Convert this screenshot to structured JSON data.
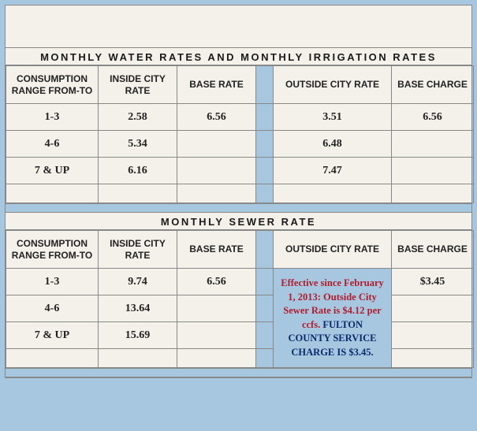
{
  "section1": {
    "title": "MONTHLY WATER RATES AND MONTHLY IRRIGATION RATES",
    "headers": {
      "consumption": "CONSUMPTION RANGE FROM-TO",
      "inside": "INSIDE CITY RATE",
      "base": "BASE RATE",
      "outside": "OUTSIDE CITY RATE",
      "charge": "BASE CHARGE"
    },
    "rows": [
      {
        "range": "1-3",
        "inside": "2.58",
        "base": "6.56",
        "outside": "3.51",
        "charge": "6.56"
      },
      {
        "range": "4-6",
        "inside": "5.34",
        "base": "",
        "outside": "6.48",
        "charge": ""
      },
      {
        "range": "7 & UP",
        "inside": "6.16",
        "base": "",
        "outside": "7.47",
        "charge": ""
      }
    ]
  },
  "section2": {
    "title": "MONTHLY SEWER RATE",
    "headers": {
      "consumption": "CONSUMPTION RANGE FROM-TO",
      "inside": "INSIDE CITY RATE",
      "base": "BASE RATE",
      "outside": "OUTSIDE CITY RATE",
      "charge": "BASE CHARGE"
    },
    "rows": [
      {
        "range": "1-3",
        "inside": "9.74",
        "base": "6.56",
        "charge": "$3.45"
      },
      {
        "range": "4-6",
        "inside": "13.64",
        "base": ""
      },
      {
        "range": "7 & UP",
        "inside": "15.69",
        "base": ""
      }
    ],
    "notice": {
      "line1": "Effective since February 1, 2013: Outside City Sewer Rate is $4.12 per ccfs.",
      "line2": "FULTON COUNTY SERVICE CHARGE IS $3.45."
    }
  }
}
